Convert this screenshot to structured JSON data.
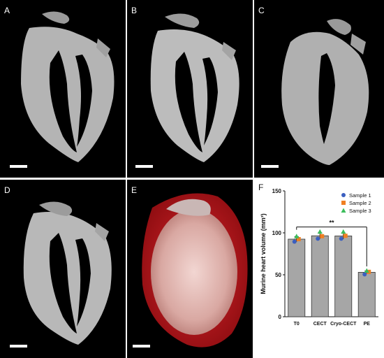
{
  "panels": {
    "a": {
      "label": "A"
    },
    "b": {
      "label": "B"
    },
    "c": {
      "label": "C"
    },
    "d": {
      "label": "D"
    },
    "e": {
      "label": "E"
    },
    "f": {
      "label": "F"
    }
  },
  "colors": {
    "slice_tissue": "#b9b9b9",
    "render_outer": "#c0141a",
    "render_inner": "#e7c2bd",
    "bar_fill": "#a6a6a6",
    "sample1": "#3b5fc0",
    "sample2": "#f07f22",
    "sample3": "#3cbd5b"
  },
  "chart_data": {
    "type": "bar",
    "ylabel": "Murine heart volume (mm³)",
    "ylim": [
      0,
      150
    ],
    "yticks": [
      "0",
      "50",
      "100",
      "150"
    ],
    "categories": [
      "T0",
      "CECT",
      "Cryo-CECT",
      "PE"
    ],
    "values": [
      92.5,
      96.5,
      96.3,
      53.0
    ],
    "errors": [
      3.0,
      3.5,
      3.5,
      1.5
    ],
    "series": [
      {
        "name": "Sample 1",
        "marker": "circle",
        "values": [
          89.5,
          93.0,
          93.0,
          50.5
        ]
      },
      {
        "name": "Sample 2",
        "marker": "square",
        "values": [
          92.5,
          96.0,
          96.5,
          53.5
        ]
      },
      {
        "name": "Sample 3",
        "marker": "triangle",
        "values": [
          96.0,
          101.5,
          101.5,
          55.0
        ]
      }
    ],
    "annotation": "**",
    "legend": "top-right",
    "grid": false
  }
}
